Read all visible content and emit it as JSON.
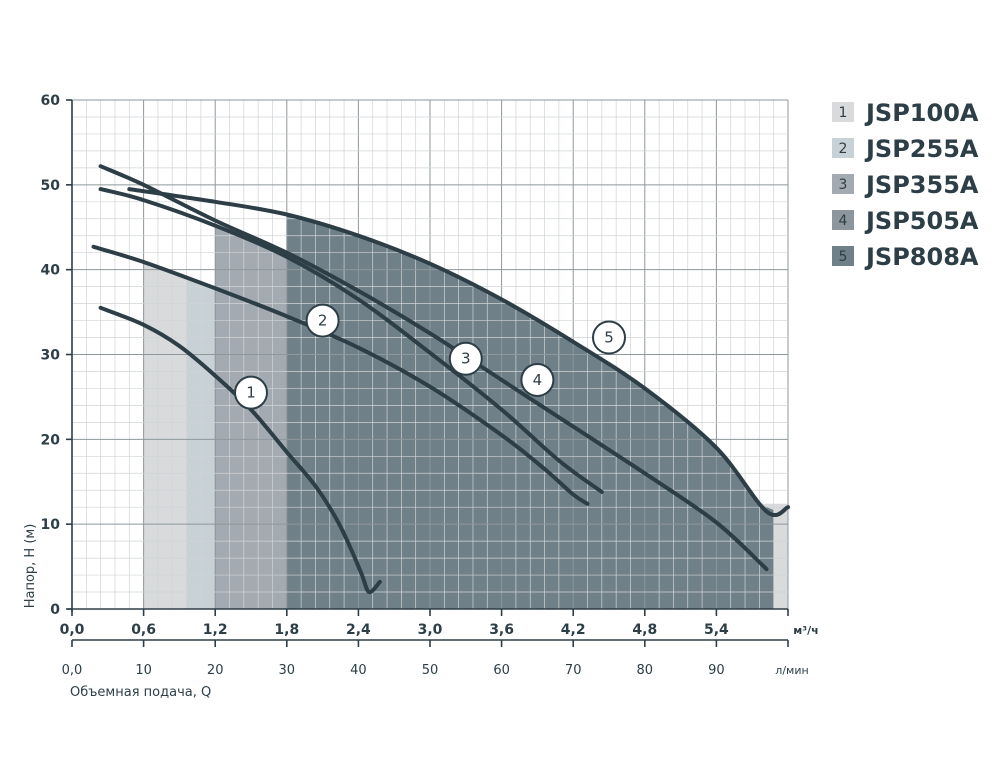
{
  "chart_data": {
    "type": "line",
    "ylabel": "Напор, Н (м)",
    "xlabel": "Объемная подача, Q",
    "x_unit": "м³/ч",
    "x2_unit": "л/мин",
    "ylim": [
      0,
      60
    ],
    "xlim": [
      0,
      6.0
    ],
    "y_ticks": [
      "0",
      "10",
      "20",
      "30",
      "40",
      "50",
      "60"
    ],
    "x_ticks": [
      "0,0",
      "0,6",
      "1,2",
      "1,8",
      "2,4",
      "3,0",
      "3,6",
      "4,2",
      "4,8",
      "5,4"
    ],
    "x2_ticks": [
      "0,0",
      "10",
      "20",
      "30",
      "40",
      "50",
      "60",
      "70",
      "80",
      "90"
    ],
    "grid": true,
    "legend_position": "right",
    "series": [
      {
        "name": "JSP100A",
        "marker": "1",
        "color": "#d8dadc",
        "x": [
          0.24,
          0.6,
          0.9,
          1.2,
          1.5,
          1.8,
          2.04,
          2.22,
          2.34,
          2.43,
          2.49,
          2.58
        ],
        "y": [
          35.5,
          33.5,
          31.0,
          27.5,
          23.5,
          18.5,
          14.5,
          10.5,
          7.0,
          4.0,
          2.0,
          3.2
        ]
      },
      {
        "name": "JSP255A",
        "marker": "2",
        "color": "#c7d1d6",
        "x": [
          0.18,
          0.6,
          1.2,
          1.8,
          2.4,
          3.0,
          3.6,
          3.96,
          4.2,
          4.32
        ],
        "y": [
          42.7,
          40.9,
          37.8,
          34.5,
          30.8,
          26.2,
          20.5,
          16.5,
          13.5,
          12.4
        ]
      },
      {
        "name": "JSP355A",
        "marker": "3",
        "color": "#a4aab2",
        "x": [
          0.24,
          0.6,
          1.2,
          1.8,
          2.4,
          3.0,
          3.6,
          4.08,
          4.44
        ],
        "y": [
          49.5,
          48.2,
          45.2,
          41.5,
          36.5,
          30.2,
          23.5,
          17.5,
          13.8
        ]
      },
      {
        "name": "JSP505A",
        "marker": "4",
        "color": "#8c969c",
        "x": [
          0.24,
          0.6,
          1.2,
          1.8,
          2.4,
          3.0,
          3.6,
          4.2,
          4.8,
          5.4,
          5.82
        ],
        "y": [
          52.2,
          50.0,
          45.8,
          42.0,
          37.5,
          32.5,
          27.0,
          21.5,
          16.0,
          10.2,
          4.7
        ]
      },
      {
        "name": "JSP808A",
        "marker": "5",
        "color": "#6f8088",
        "x": [
          0.48,
          1.2,
          1.8,
          2.4,
          3.0,
          3.6,
          4.2,
          4.8,
          5.4,
          5.82,
          6.0
        ],
        "y": [
          49.5,
          48.0,
          46.5,
          44.0,
          40.7,
          36.5,
          31.5,
          26.0,
          19.0,
          11.5,
          12.0
        ]
      }
    ],
    "fill_regions": [
      {
        "series": "JSP100A",
        "x_from": 0.6,
        "x_to": 6.0
      },
      {
        "series": "JSP255A",
        "x_from": 0.96,
        "x_to": 4.08
      },
      {
        "series": "JSP355A",
        "x_from": 1.2,
        "x_to": 4.08
      },
      {
        "series": "JSP505A",
        "x_from": 1.8,
        "x_to": 4.2
      },
      {
        "series": "JSP808A",
        "x_from": 1.8,
        "x_to": 5.88
      }
    ],
    "marker_points": [
      {
        "label": "1",
        "x": 1.5,
        "y": 25.5
      },
      {
        "label": "2",
        "x": 2.1,
        "y": 34.0
      },
      {
        "label": "3",
        "x": 3.3,
        "y": 29.5
      },
      {
        "label": "4",
        "x": 3.9,
        "y": 27.0
      },
      {
        "label": "5",
        "x": 4.5,
        "y": 32.0
      }
    ]
  },
  "colors": {
    "axis": "#2d3e46",
    "grid_minor": "#d0d4d6",
    "grid_major": "#8e979b",
    "curve": "#2d3e46"
  }
}
